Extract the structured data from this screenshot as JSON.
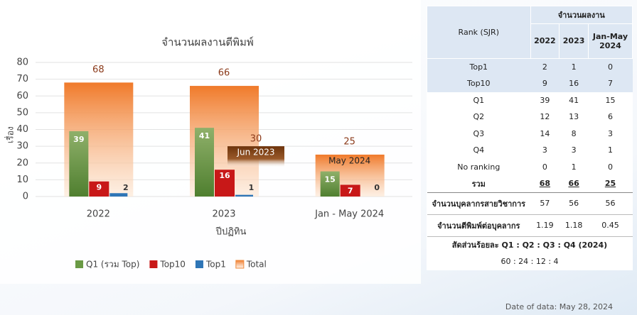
{
  "chart_data": {
    "type": "bar",
    "title": "จำนวนผลงานตีพิมพ์",
    "x_label": "ปีปฏิทิน",
    "y_label": "เรื่อง",
    "categories": [
      "2022",
      "2023",
      "Jan - May 2024"
    ],
    "series": [
      {
        "name": "Q1 (รวม Top)",
        "color": "#6a9a45",
        "values": [
          39,
          41,
          15
        ]
      },
      {
        "name": "Top10",
        "color": "#c81818",
        "values": [
          9,
          16,
          7
        ]
      },
      {
        "name": "Top1",
        "color": "#2e75b6",
        "values": [
          2,
          1,
          0
        ]
      },
      {
        "name": "Total",
        "color": "#f08a3c",
        "values": [
          68,
          66,
          25
        ]
      }
    ],
    "annotations": [
      {
        "text": "Jun 2023",
        "value": 30
      },
      {
        "text": "May 2024"
      }
    ],
    "ylim": [
      0,
      80
    ],
    "yticks": [
      0,
      10,
      20,
      30,
      40,
      50,
      60,
      70,
      80
    ],
    "grid": true,
    "legend": "bottom-left"
  },
  "table": {
    "header": [
      "Rank (SJR)",
      "จำนวนผลงาน"
    ],
    "years": [
      "2022",
      "2023",
      "Jan-May 2024"
    ],
    "rows": [
      [
        "Top1",
        2,
        1,
        0
      ],
      [
        "Top10",
        9,
        16,
        7
      ],
      [
        "Q1",
        39,
        41,
        15
      ],
      [
        "Q2",
        12,
        13,
        6
      ],
      [
        "Q3",
        14,
        8,
        3
      ],
      [
        "Q4",
        3,
        3,
        1
      ],
      [
        "No ranking",
        0,
        1,
        0
      ]
    ],
    "total": [
      "รวม",
      68,
      66,
      25
    ],
    "extra": [
      [
        "จำนวนบุคลากรสายวิชาการ",
        57,
        56,
        56
      ],
      [
        "จำนวนตีพิมพ์ต่อบุคลากร",
        1.19,
        1.18,
        0.45
      ]
    ],
    "ratio_title": "สัดส่วนร้อยละ Q1 : Q2 : Q3 : Q4 (2024)",
    "ratio": "60 : 24 : 12 : 4"
  },
  "footer": "Date of data: May 28, 2024"
}
